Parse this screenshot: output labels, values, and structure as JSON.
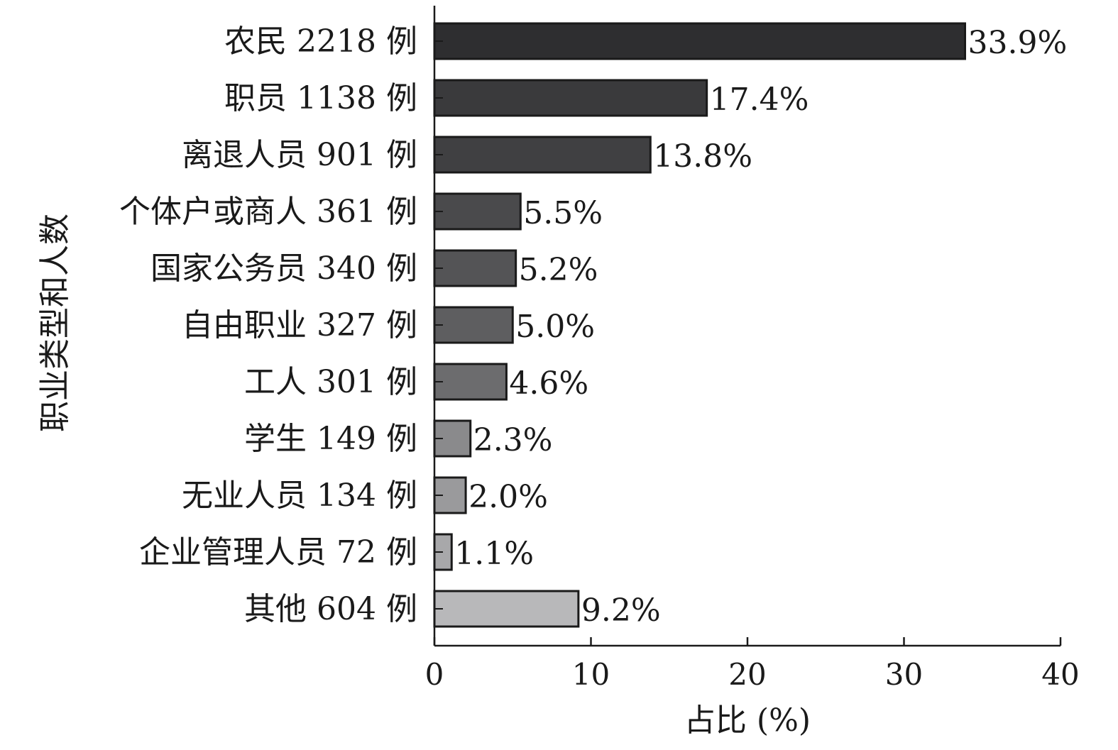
{
  "chart_data": {
    "type": "bar",
    "orientation": "horizontal",
    "categories": [
      "农民 2218 例",
      "职员 1138 例",
      "离退人员 901 例",
      "个体户或商人 361 例",
      "国家公务员 340 例",
      "自由职业 327 例",
      "工人 301 例",
      "学生 149 例",
      "无业人员 134 例",
      "企业管理人员 72 例",
      "其他 604 例"
    ],
    "values": [
      33.9,
      17.4,
      13.8,
      5.5,
      5.2,
      5.0,
      4.6,
      2.3,
      2.0,
      1.1,
      9.2
    ],
    "value_labels": [
      "33.9%",
      "17.4%",
      "13.8%",
      "5.5%",
      "5.2%",
      "5.0%",
      "4.6%",
      "2.3%",
      "2.0%",
      "1.1%",
      "9.2%"
    ],
    "bar_colors": [
      "#2e2e30",
      "#3a3a3c",
      "#404042",
      "#4a4a4c",
      "#545456",
      "#5e5e60",
      "#6c6c6e",
      "#8a8a8c",
      "#9a9a9c",
      "#a8a8aa",
      "#b8b8ba"
    ],
    "xlabel": "占比 (%)",
    "ylabel": "职业类型和人数",
    "xlim": [
      0,
      40
    ],
    "xticks": [
      "0",
      "10",
      "20",
      "30",
      "40"
    ],
    "grid": false
  }
}
